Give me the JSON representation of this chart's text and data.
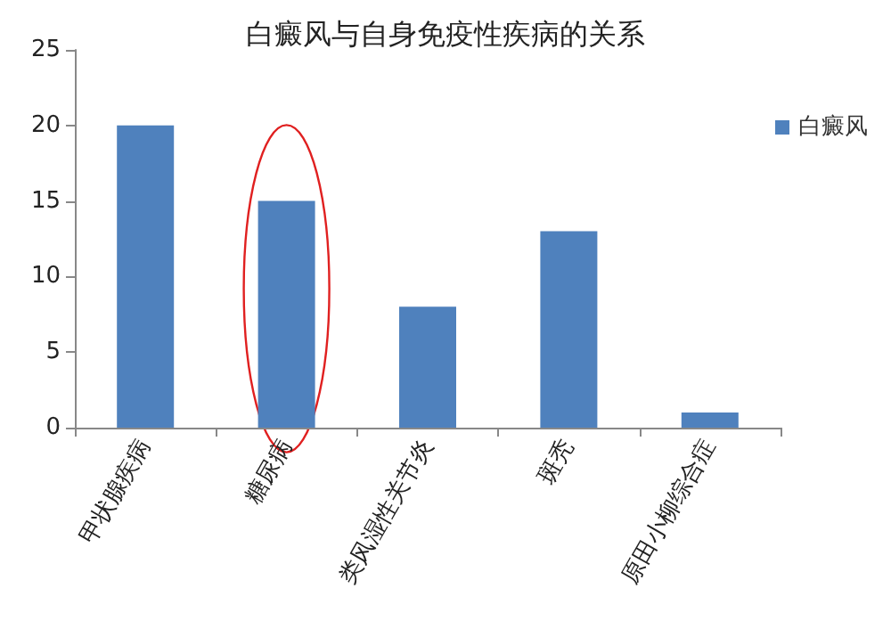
{
  "chart_data": {
    "type": "bar",
    "title": "白癜风与自身免疫性疾病的关系",
    "categories": [
      "甲状腺疾病",
      "糖尿病",
      "类风湿性关节炎",
      "斑秃",
      "原田小柳综合症"
    ],
    "series": [
      {
        "name": "白癜风",
        "color": "#4f81bd",
        "values": [
          20,
          15,
          8,
          13,
          1
        ]
      }
    ],
    "ylim": [
      0,
      25
    ],
    "yticks": [
      0,
      5,
      10,
      15,
      20,
      25
    ],
    "grid": false,
    "legend": "right"
  }
}
